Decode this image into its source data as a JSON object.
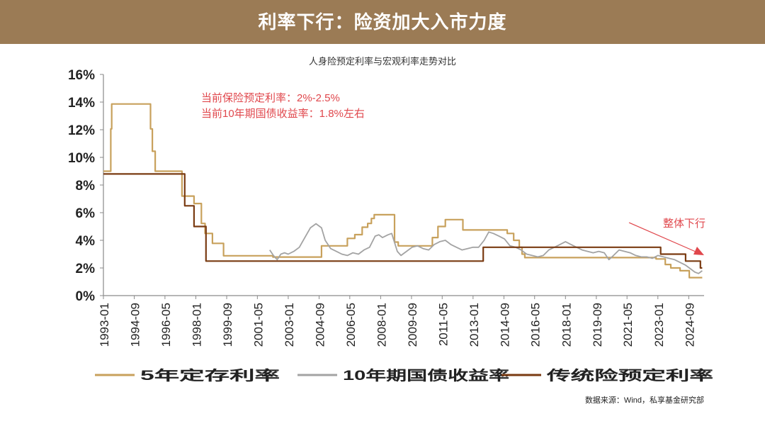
{
  "header": {
    "title": "利率下行：险资加大入市力度"
  },
  "source": "数据来源：Wind，私享基金研究部",
  "colors": {
    "banner": "#9b7b55",
    "deposit": "#c8a15c",
    "bond": "#a3a3a3",
    "insurance": "#7a3b12",
    "annotation": "#e0474c"
  },
  "chart_data": {
    "type": "line",
    "title": "人身险预定利率与宏观利率走势对比",
    "xlabel": "",
    "ylabel": "",
    "ylim": [
      0,
      16
    ],
    "xlim": [
      1993.0,
      2025.5
    ],
    "yticks": [
      0,
      2,
      4,
      6,
      8,
      10,
      12,
      14,
      16
    ],
    "ytick_labels": [
      "0%",
      "2%",
      "4%",
      "6%",
      "8%",
      "10%",
      "12%",
      "14%",
      "16%"
    ],
    "xtick_labels": [
      "1993-01",
      "1994-09",
      "1996-05",
      "1998-01",
      "1999-09",
      "2001-05",
      "2003-01",
      "2004-09",
      "2006-05",
      "2008-01",
      "2009-09",
      "2011-05",
      "2013-01",
      "2014-09",
      "2016-05",
      "2018-01",
      "2019-09",
      "2021-05",
      "2023-01",
      "2024-09"
    ],
    "xtick_values": [
      1993.0,
      1994.67,
      1996.33,
      1998.0,
      1999.67,
      2001.33,
      2003.0,
      2004.67,
      2006.33,
      2008.0,
      2009.67,
      2011.33,
      2013.0,
      2014.67,
      2016.33,
      2018.0,
      2019.67,
      2021.33,
      2023.0,
      2024.67
    ],
    "series": [
      {
        "name": "5年定存利率",
        "color": "#c8a15c",
        "x": [
          1993.0,
          1993.4,
          1993.4,
          1993.45,
          1993.45,
          1993.55,
          1993.55,
          1995.55,
          1995.55,
          1995.65,
          1995.65,
          1995.8,
          1995.8,
          1997.25,
          1997.25,
          1997.9,
          1997.9,
          1998.3,
          1998.3,
          1998.5,
          1998.5,
          1998.9,
          1998.9,
          1999.5,
          1999.5,
          2002.17,
          2002.17,
          2004.8,
          2004.8,
          2006.2,
          2006.2,
          2006.6,
          2006.6,
          2007.0,
          2007.0,
          2007.3,
          2007.3,
          2007.5,
          2007.5,
          2007.65,
          2007.65,
          2008.75,
          2008.75,
          2008.95,
          2008.95,
          2010.8,
          2010.8,
          2011.1,
          2011.1,
          2011.5,
          2011.5,
          2012.45,
          2012.45,
          2014.85,
          2014.85,
          2015.2,
          2015.2,
          2015.5,
          2015.5,
          2015.65,
          2015.65,
          2015.8,
          2015.8,
          2022.9,
          2022.9,
          2023.4,
          2023.4,
          2023.7,
          2023.7,
          2024.2,
          2024.2,
          2024.7,
          2024.7,
          2025.4
        ],
        "y": [
          9.0,
          9.0,
          12.06,
          12.06,
          13.86,
          13.86,
          13.86,
          13.86,
          12.06,
          12.06,
          10.44,
          10.44,
          9.0,
          9.0,
          7.2,
          7.2,
          6.66,
          6.66,
          5.22,
          5.22,
          4.5,
          4.5,
          3.78,
          3.78,
          2.88,
          2.88,
          2.79,
          2.79,
          3.6,
          3.6,
          4.14,
          4.14,
          4.41,
          4.41,
          4.95,
          4.95,
          5.22,
          5.22,
          5.58,
          5.58,
          5.85,
          5.85,
          3.87,
          3.87,
          3.6,
          3.6,
          4.2,
          4.2,
          5.0,
          5.0,
          5.5,
          5.5,
          4.75,
          4.75,
          4.5,
          4.5,
          4.0,
          4.0,
          3.5,
          3.5,
          3.0,
          3.0,
          2.75,
          2.75,
          2.65,
          2.65,
          2.25,
          2.25,
          2.0,
          2.0,
          1.8,
          1.8,
          1.3,
          1.3
        ]
      },
      {
        "name": "10年期国债收益率",
        "color": "#a3a3a3",
        "x": [
          2002.0,
          2002.2,
          2002.4,
          2002.6,
          2002.8,
          2003.0,
          2003.3,
          2003.6,
          2003.9,
          2004.2,
          2004.5,
          2004.8,
          2005.0,
          2005.3,
          2005.6,
          2005.9,
          2006.2,
          2006.5,
          2006.8,
          2007.1,
          2007.4,
          2007.7,
          2007.9,
          2008.1,
          2008.4,
          2008.6,
          2008.9,
          2009.1,
          2009.4,
          2009.7,
          2010.0,
          2010.3,
          2010.6,
          2010.9,
          2011.2,
          2011.5,
          2011.8,
          2012.1,
          2012.4,
          2012.7,
          2013.0,
          2013.3,
          2013.6,
          2013.85,
          2014.1,
          2014.4,
          2014.7,
          2015.0,
          2015.3,
          2015.6,
          2015.9,
          2016.2,
          2016.5,
          2016.8,
          2017.1,
          2017.4,
          2017.7,
          2018.0,
          2018.3,
          2018.6,
          2018.9,
          2019.2,
          2019.5,
          2019.8,
          2020.1,
          2020.35,
          2020.6,
          2020.9,
          2021.2,
          2021.5,
          2021.8,
          2022.1,
          2022.4,
          2022.7,
          2023.0,
          2023.3,
          2023.6,
          2023.9,
          2024.2,
          2024.5,
          2024.8,
          2025.0,
          2025.2,
          2025.4
        ],
        "y": [
          3.3,
          2.9,
          2.6,
          3.0,
          3.1,
          3.0,
          3.2,
          3.5,
          4.2,
          4.9,
          5.2,
          4.9,
          4.0,
          3.4,
          3.2,
          3.0,
          2.9,
          3.1,
          3.0,
          3.3,
          3.5,
          4.3,
          4.4,
          4.2,
          4.4,
          4.5,
          3.2,
          2.9,
          3.2,
          3.5,
          3.6,
          3.4,
          3.3,
          3.7,
          3.9,
          4.0,
          3.7,
          3.5,
          3.3,
          3.4,
          3.5,
          3.5,
          4.0,
          4.6,
          4.5,
          4.3,
          4.1,
          3.6,
          3.5,
          3.3,
          3.0,
          2.9,
          2.8,
          2.9,
          3.3,
          3.5,
          3.7,
          3.9,
          3.7,
          3.5,
          3.3,
          3.2,
          3.1,
          3.2,
          3.1,
          2.6,
          2.9,
          3.3,
          3.2,
          3.1,
          2.9,
          2.8,
          2.8,
          2.7,
          2.9,
          2.8,
          2.7,
          2.6,
          2.4,
          2.2,
          1.9,
          1.7,
          1.6,
          1.8
        ]
      },
      {
        "name": "传统险预定利率",
        "color": "#7a3b12",
        "x": [
          1993.0,
          1997.4,
          1997.4,
          1997.9,
          1997.9,
          1998.55,
          1998.55,
          1999.5,
          1999.5,
          2013.55,
          2013.55,
          2023.15,
          2023.15,
          2024.5,
          2024.5,
          2025.3,
          2025.3,
          2025.4
        ],
        "y": [
          8.8,
          8.8,
          6.5,
          6.5,
          5.0,
          5.0,
          2.5,
          2.5,
          2.5,
          2.5,
          3.5,
          3.5,
          3.0,
          3.0,
          2.5,
          2.5,
          2.0,
          2.0
        ]
      }
    ],
    "legend": {
      "placement": "bottom"
    },
    "annotations": {
      "line1": "当前保险预定利率：2%-2.5%",
      "line2": "当前10年期国债收益率：1.8%左右",
      "trend_label": "整体下行"
    }
  }
}
